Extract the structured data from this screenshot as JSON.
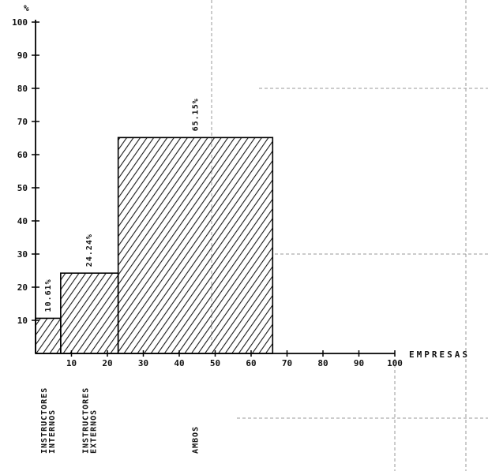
{
  "chart_data": {
    "type": "bar",
    "title": "",
    "ylabel": "%",
    "xlabel": "EMPRESAS",
    "xlim": [
      0,
      100
    ],
    "ylim": [
      0,
      100
    ],
    "x_ticks": [
      "10",
      "20",
      "30",
      "40",
      "50",
      "60",
      "70",
      "80",
      "90",
      "100"
    ],
    "y_ticks": [
      "10",
      "20",
      "30",
      "40",
      "50",
      "60",
      "70",
      "80",
      "90",
      "100"
    ],
    "grid": false,
    "bars": [
      {
        "category": [
          "INSTRUCTORES",
          "INTERNOS"
        ],
        "value": 10.61,
        "label": "10.61%",
        "x_start": 0,
        "x_end": 7
      },
      {
        "category": [
          "INSTRUCTORES",
          "EXTERNOS"
        ],
        "value": 24.24,
        "label": "24.24%",
        "x_start": 7,
        "x_end": 23
      },
      {
        "category": [
          "AMBOS"
        ],
        "value": 65.15,
        "label": "65.15%",
        "x_start": 23,
        "x_end": 66
      }
    ]
  }
}
